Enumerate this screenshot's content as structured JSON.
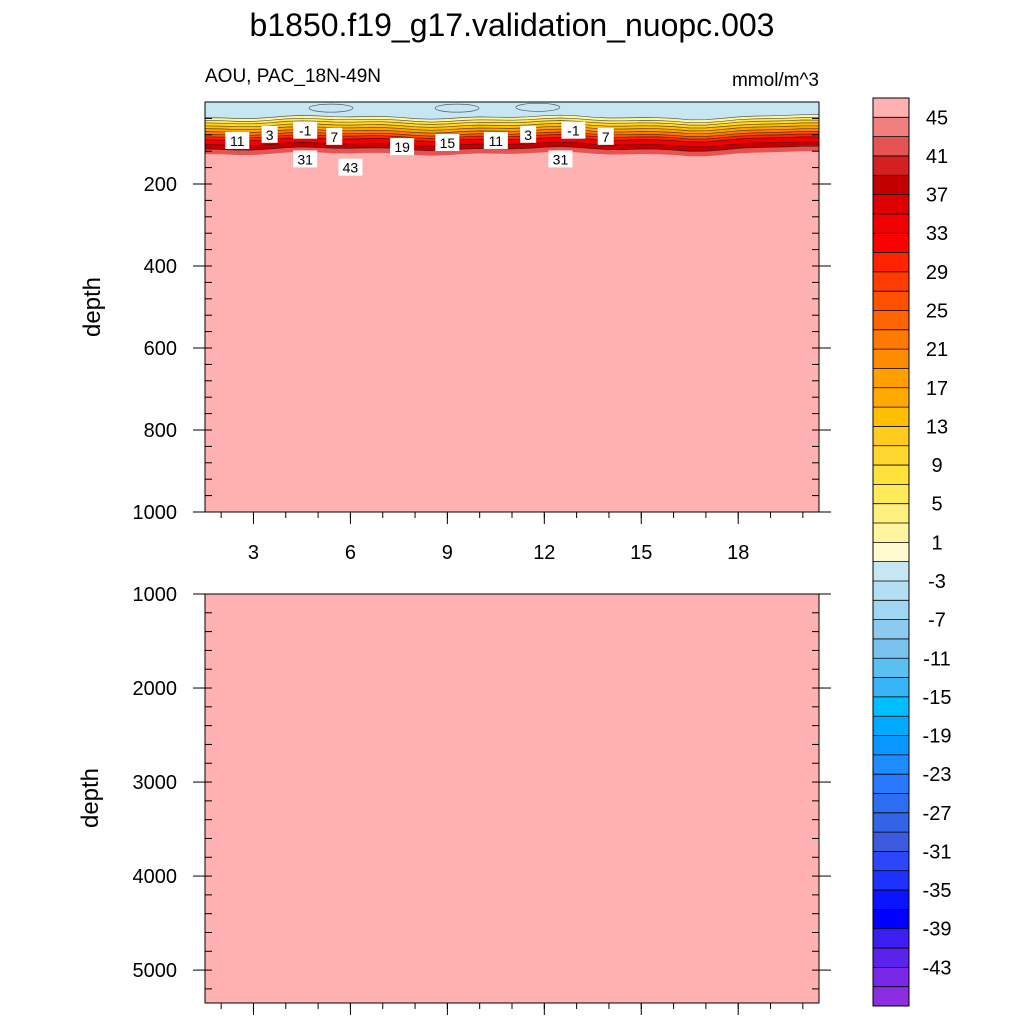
{
  "title": "b1850.f19_g17.validation_nuopc.003",
  "chart_data": [
    {
      "type": "contour",
      "subtitle_left": "AOU, PAC_18N-49N",
      "subtitle_right": "mmol/m^3",
      "ylabel": "depth",
      "ylim": [
        0,
        1000
      ],
      "y_inverted": true,
      "y_ticks": [
        200,
        400,
        600,
        800,
        1000
      ],
      "xlim": [
        1.5,
        20.5
      ],
      "x_ticks": [
        3,
        6,
        9,
        12,
        15,
        18
      ],
      "contour_labels": [
        {
          "text": "11",
          "x": 2.5,
          "depth": 95
        },
        {
          "text": "3",
          "x": 3.5,
          "depth": 80
        },
        {
          "text": "-1",
          "x": 4.6,
          "depth": 70
        },
        {
          "text": "31",
          "x": 4.6,
          "depth": 140
        },
        {
          "text": "7",
          "x": 5.5,
          "depth": 85
        },
        {
          "text": "43",
          "x": 6.0,
          "depth": 160
        },
        {
          "text": "19",
          "x": 7.6,
          "depth": 110
        },
        {
          "text": "15",
          "x": 9.0,
          "depth": 100
        },
        {
          "text": "11",
          "x": 10.5,
          "depth": 95
        },
        {
          "text": "3",
          "x": 11.5,
          "depth": 80
        },
        {
          "text": "31",
          "x": 12.5,
          "depth": 140
        },
        {
          "text": "-1",
          "x": 12.9,
          "depth": 70
        },
        {
          "text": "7",
          "x": 13.9,
          "depth": 85
        }
      ]
    },
    {
      "type": "contour",
      "ylabel": "depth",
      "ylim": [
        1000,
        5350
      ],
      "y_inverted": true,
      "y_ticks": [
        1000,
        2000,
        3000,
        4000,
        5000
      ],
      "xlim": [
        1.5,
        20.5
      ],
      "x_ticks": [
        3,
        6,
        9,
        12,
        15,
        18
      ]
    }
  ],
  "colorbar": {
    "unit": "mmol/m^3",
    "tick_labels": [
      "45",
      "41",
      "37",
      "33",
      "29",
      "25",
      "21",
      "17",
      "13",
      "9",
      "5",
      "1",
      "-3",
      "-7",
      "-11",
      "-15",
      "-19",
      "-23",
      "-27",
      "-31",
      "-35",
      "-39",
      "-43"
    ],
    "colors": [
      "#FFB1B1",
      "#F07F7F",
      "#E65353",
      "#D42020",
      "#C30000",
      "#DE0000",
      "#F00000",
      "#FF0000",
      "#FF2400",
      "#FF3C00",
      "#FF5000",
      "#FF6400",
      "#FF7800",
      "#FF8C00",
      "#FFA000",
      "#FFAA00",
      "#FFBE00",
      "#FFCC1E",
      "#FFD72D",
      "#FFE13C",
      "#FFEB5A",
      "#FFF07D",
      "#FFF5A0",
      "#FFFACD",
      "#C6E6F2",
      "#B4DEF2",
      "#A0D6F1",
      "#8CCBEF",
      "#78C3EE",
      "#5AC0F0",
      "#37B4F6",
      "#00BEFF",
      "#00AAFF",
      "#0A96FF",
      "#1E8CFF",
      "#2878FF",
      "#2D6EF0",
      "#3264E6",
      "#3C5ADC",
      "#2D46FA",
      "#1E32FF",
      "#0A14FF",
      "#0000FF",
      "#3C1EF0",
      "#5A23EB",
      "#7828E6",
      "#8C2DE1"
    ]
  }
}
